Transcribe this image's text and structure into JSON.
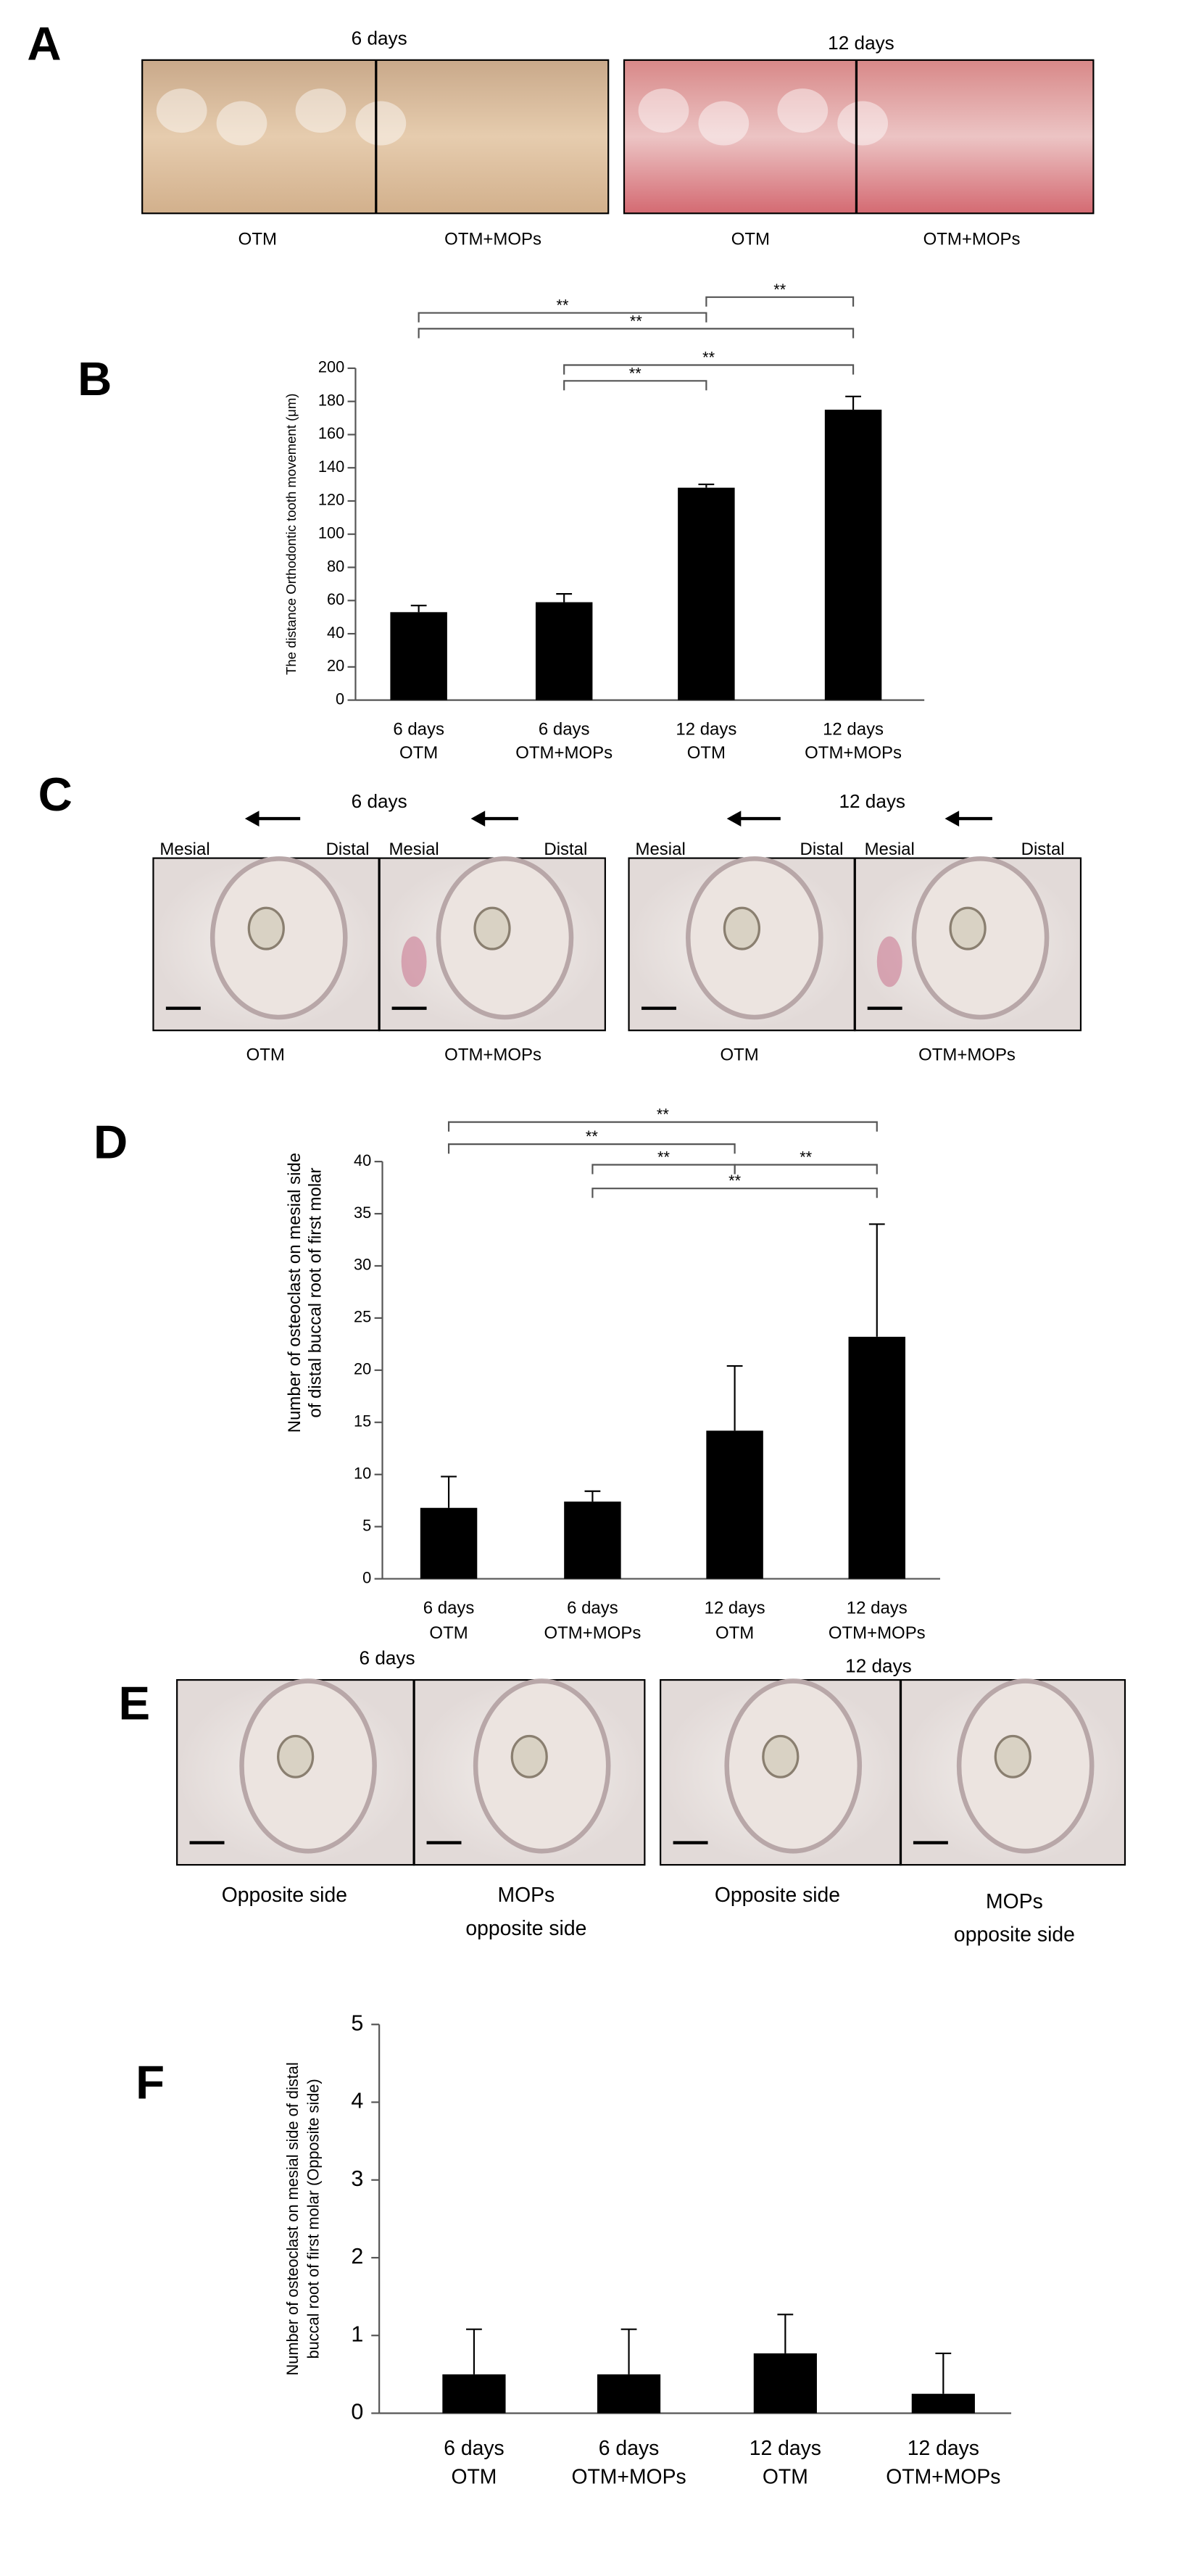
{
  "panel_a": {
    "letter": "A",
    "groups": [
      {
        "title": "6 days",
        "captions": [
          "OTM",
          "OTM+MOPs"
        ]
      },
      {
        "title": "12 days",
        "captions": [
          "OTM",
          "OTM+MOPs"
        ]
      }
    ]
  },
  "panel_c": {
    "letter": "C",
    "groups": [
      {
        "title": "6 days",
        "images": [
          {
            "sides": [
              "Mesial",
              "Distal"
            ],
            "caption": "OTM"
          },
          {
            "sides": [
              "Mesial",
              "Distal"
            ],
            "caption": "OTM+MOPs"
          }
        ]
      },
      {
        "title": "12 days",
        "images": [
          {
            "sides": [
              "Mesial",
              "Distal"
            ],
            "caption": "OTM"
          },
          {
            "sides": [
              "Mesial",
              "Distal"
            ],
            "caption": "OTM+MOPs"
          }
        ]
      }
    ]
  },
  "panel_e": {
    "letter": "E",
    "groups": [
      {
        "title": "6 days",
        "captions": [
          [
            "Opposite side"
          ],
          [
            "MOPs",
            "opposite side"
          ]
        ]
      },
      {
        "title": "12 days",
        "captions": [
          [
            "Opposite side"
          ],
          [
            "MOPs",
            "opposite side"
          ]
        ]
      }
    ]
  },
  "chart_data": [
    {
      "type": "bar",
      "panel": "B",
      "y_label": [
        "The distance Orthodontic tooth movement (μm)"
      ],
      "categories": [
        [
          "6 days",
          "OTM"
        ],
        [
          "6 days",
          "OTM+MOPs"
        ],
        [
          "12 days",
          "OTM"
        ],
        [
          "12 days",
          "OTM+MOPs"
        ]
      ],
      "values": [
        53,
        59,
        128,
        175
      ],
      "errors": [
        4,
        5,
        2,
        8
      ],
      "color": "#000000",
      "ylim": [
        0,
        200
      ],
      "yticks": [
        0,
        20,
        40,
        60,
        80,
        100,
        120,
        140,
        160,
        180,
        200
      ],
      "significance": [
        {
          "between": [
            2,
            3
          ],
          "label": "**"
        },
        {
          "between": [
            0,
            2
          ],
          "label": "**"
        },
        {
          "between": [
            0,
            3
          ],
          "label": "**"
        },
        {
          "between": [
            1,
            3
          ],
          "label": "**"
        },
        {
          "between": [
            1,
            2
          ],
          "label": "**"
        }
      ]
    },
    {
      "type": "bar",
      "panel": "D",
      "y_label": [
        "Number of osteoclast on mesial side",
        "of distal buccal root of first molar"
      ],
      "categories": [
        [
          "6 days",
          "OTM"
        ],
        [
          "6 days",
          "OTM+MOPs"
        ],
        [
          "12 days",
          "OTM"
        ],
        [
          "12 days",
          "OTM+MOPs"
        ]
      ],
      "values": [
        6.8,
        7.4,
        14.2,
        23.2
      ],
      "errors": [
        3,
        1,
        6.2,
        10.8
      ],
      "color": "#000000",
      "ylim": [
        0,
        40
      ],
      "yticks": [
        0,
        5,
        10,
        15,
        20,
        25,
        30,
        35,
        40
      ],
      "significance": [
        {
          "between": [
            0,
            3
          ],
          "label": "**"
        },
        {
          "between": [
            0,
            2
          ],
          "label": "**"
        },
        {
          "between": [
            1,
            2
          ],
          "label": "**"
        },
        {
          "between": [
            2,
            3
          ],
          "label": "**"
        },
        {
          "between": [
            1,
            3
          ],
          "label": "**"
        }
      ]
    },
    {
      "type": "bar",
      "panel": "F",
      "y_label": [
        "Number of osteoclast on mesial side of distal",
        "buccal root of first molar (Opposite side)"
      ],
      "categories": [
        [
          "6 days",
          "OTM"
        ],
        [
          "6 days",
          "OTM+MOPs"
        ],
        [
          "12 days",
          "OTM"
        ],
        [
          "12 days",
          "OTM+MOPs"
        ]
      ],
      "values": [
        0.5,
        0.5,
        0.77,
        0.25
      ],
      "errors": [
        0.58,
        0.58,
        0.5,
        0.52
      ],
      "color": "#000000",
      "ylim": [
        0,
        5
      ],
      "yticks": [
        0,
        1,
        2,
        3,
        4,
        5
      ],
      "significance": []
    }
  ]
}
